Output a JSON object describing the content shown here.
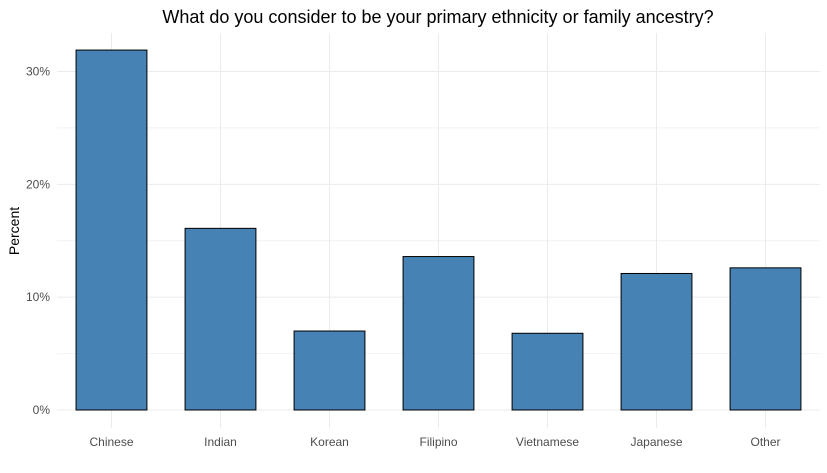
{
  "chart_data": {
    "type": "bar",
    "title": "What do you consider to be your primary ethnicity or family ancestry?",
    "xlabel": "",
    "ylabel": "Percent",
    "categories": [
      "Chinese",
      "Indian",
      "Korean",
      "Filipino",
      "Vietnamese",
      "Japanese",
      "Other"
    ],
    "values": [
      31.9,
      16.1,
      7.0,
      13.6,
      6.8,
      12.1,
      12.6
    ],
    "ylim": [
      0,
      33.5
    ],
    "y_ticks": [
      0,
      10,
      20,
      30
    ],
    "y_tick_labels": [
      "0%",
      "10%",
      "20%",
      "30%"
    ],
    "bar_color": "#4682B4",
    "bar_outline": "#000000",
    "grid": true,
    "legend": "none"
  }
}
